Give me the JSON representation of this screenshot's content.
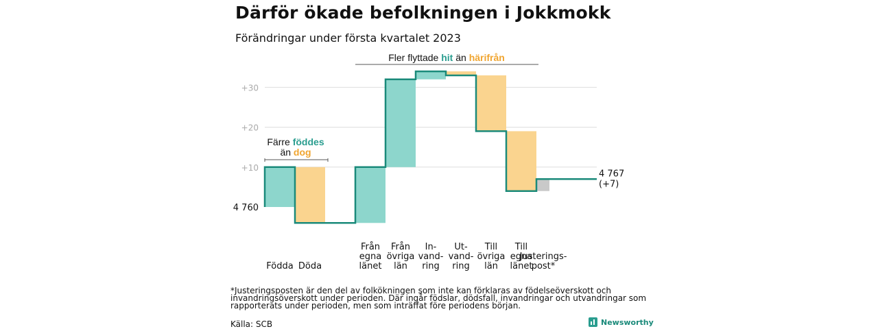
{
  "header": {
    "title": "Därför ökade befolkningen i Jokkmokk",
    "subtitle": "Förändringar under första kvartalet 2023"
  },
  "colors": {
    "increase": "#8dd6cc",
    "decrease": "#fad48f",
    "adjustment": "#c9c9c9",
    "line": "#1a8a7a",
    "grid": "#dddddd",
    "tick_text": "#aaaaaa",
    "teal_text": "#2a9d8f",
    "orange_text": "#f0a530"
  },
  "chart_data": {
    "type": "waterfall",
    "start_label": "4 760",
    "end_label": "4 767",
    "end_change": "(+7)",
    "baseline": 4760,
    "y_ticks": [
      {
        "value": 10,
        "label": "+10"
      },
      {
        "value": 20,
        "label": "+20"
      },
      {
        "value": 30,
        "label": "+30"
      }
    ],
    "steps": [
      {
        "label_lines": [
          "Födda"
        ],
        "change": 10,
        "kind": "increase"
      },
      {
        "label_lines": [
          "Döda"
        ],
        "change": -14,
        "kind": "decrease"
      },
      {
        "label_lines": [
          "Från",
          "egna",
          "länet"
        ],
        "change": 14,
        "kind": "increase"
      },
      {
        "label_lines": [
          "Från",
          "övriga",
          "län"
        ],
        "change": 22,
        "kind": "increase"
      },
      {
        "label_lines": [
          "In-",
          "vand-",
          "ring"
        ],
        "change": 2,
        "kind": "increase"
      },
      {
        "label_lines": [
          "Ut-",
          "vand-",
          "ring"
        ],
        "change": -1,
        "kind": "decrease"
      },
      {
        "label_lines": [
          "Till",
          "övriga",
          "län"
        ],
        "change": -14,
        "kind": "decrease"
      },
      {
        "label_lines": [
          "Till",
          "egna",
          "länet"
        ],
        "change": -15,
        "kind": "decrease"
      },
      {
        "label_lines": [
          "Justerings-",
          "post*"
        ],
        "change": 3,
        "kind": "adjustment"
      }
    ],
    "annotations": [
      {
        "id": "birth",
        "lines": [
          [
            {
              "text": "Färre ",
              "color": "default"
            },
            {
              "text": "föddes",
              "color": "teal"
            }
          ],
          [
            {
              "text": "än ",
              "color": "default"
            },
            {
              "text": "dog",
              "color": "orange"
            }
          ]
        ]
      },
      {
        "id": "migration",
        "lines": [
          [
            {
              "text": "Fler flyttade ",
              "color": "default"
            },
            {
              "text": "hit",
              "color": "teal"
            },
            {
              "text": " än ",
              "color": "default"
            },
            {
              "text": "härifrån",
              "color": "orange"
            }
          ]
        ]
      }
    ]
  },
  "footer": {
    "footnote": "*Justeringsposten är den del av folkökningen som inte kan förklaras av födelseöverskott och invandringsöverskott under perioden. Där ingår födslar, dödsfall, invandringar och utvandringar som rapporterats under perioden, men som inträffat före periodens början.",
    "source": "Källa: SCB",
    "brand": "Newsworthy"
  }
}
